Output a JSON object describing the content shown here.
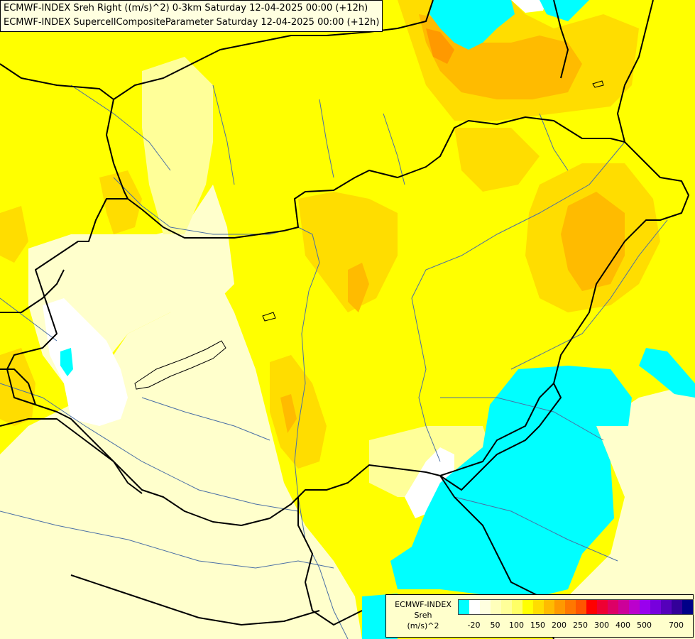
{
  "titles": {
    "line1": "ECMWF-INDEX Sreh Right ((m/s)^2) 0-3km Saturday 12-04-2025 00:00 (+12h)",
    "line2": "ECMWF-INDEX SupercellCompositeParameter Saturday 12-04-2025 00:00 (+12h)"
  },
  "legend": {
    "title_line1": "ECMWF-INDEX",
    "title_line2": "Sreh",
    "title_line3": "(m/s)^2",
    "colors": [
      "#00ffff",
      "#ffffff",
      "#ffffe0",
      "#ffffbb",
      "#ffff99",
      "#ffff66",
      "#ffff00",
      "#ffdd00",
      "#ffbb00",
      "#ff9900",
      "#ff7700",
      "#ff5500",
      "#ff0000",
      "#ee0033",
      "#dd0066",
      "#cc0099",
      "#bb00cc",
      "#9900ee",
      "#7700dd",
      "#5500bb",
      "#330099",
      "#000088"
    ],
    "ticks": [
      "-20",
      "50",
      "100",
      "150",
      "200",
      "250",
      "300",
      "400",
      "500",
      "700"
    ]
  },
  "map": {
    "colors": {
      "cyan": "#00ffff",
      "white": "#ffffff",
      "pale": "#ffffcc",
      "light_yellow": "#ffff99",
      "yellow": "#ffff00",
      "gold": "#ffdd00",
      "orange": "#ffbb00",
      "dark_orange": "#ff9900",
      "border": "#000000",
      "river": "#4a6fa5"
    }
  }
}
